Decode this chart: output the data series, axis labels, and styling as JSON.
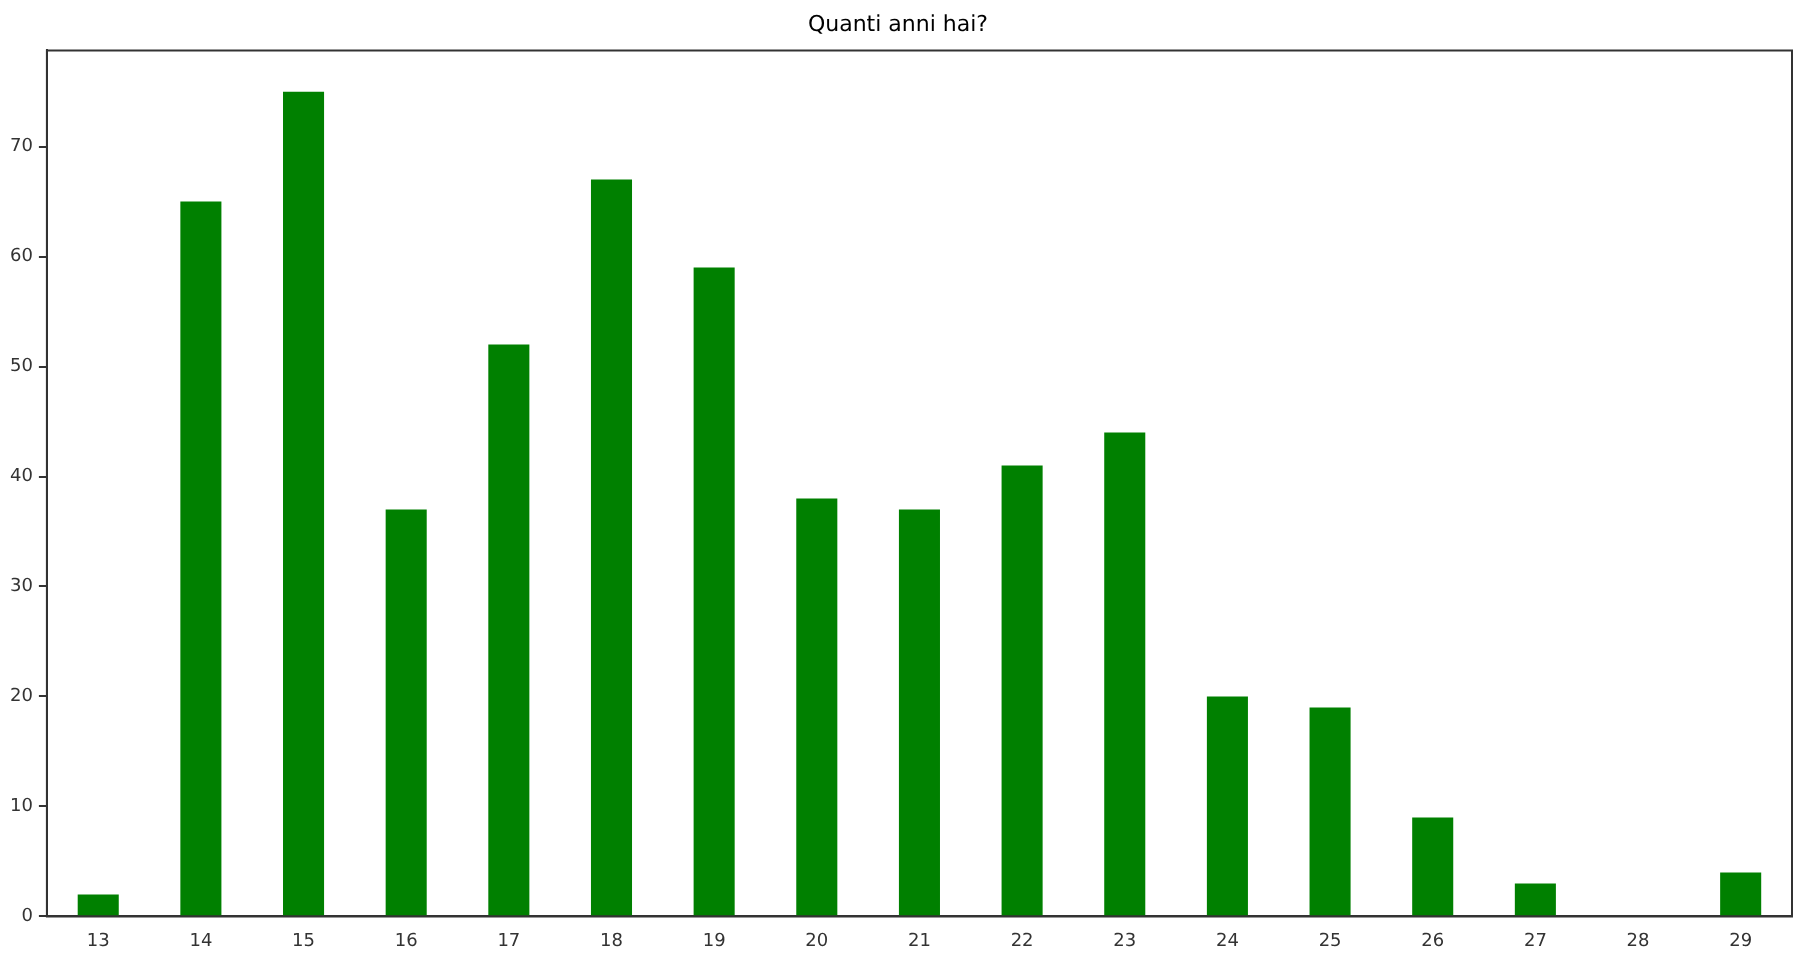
{
  "chart_data": {
    "type": "bar",
    "title": "Quanti anni hai?",
    "categories": [
      "13",
      "14",
      "15",
      "16",
      "17",
      "18",
      "19",
      "20",
      "21",
      "22",
      "23",
      "24",
      "25",
      "26",
      "27",
      "28",
      "29"
    ],
    "values": [
      2,
      65,
      75,
      37,
      52,
      67,
      59,
      38,
      37,
      41,
      44,
      20,
      19,
      9,
      3,
      0,
      4
    ],
    "color": "#008000",
    "ylim": [
      0,
      78.75
    ],
    "yticks": [
      0,
      10,
      20,
      30,
      40,
      50,
      60,
      70
    ],
    "grid": false,
    "legend": false
  }
}
